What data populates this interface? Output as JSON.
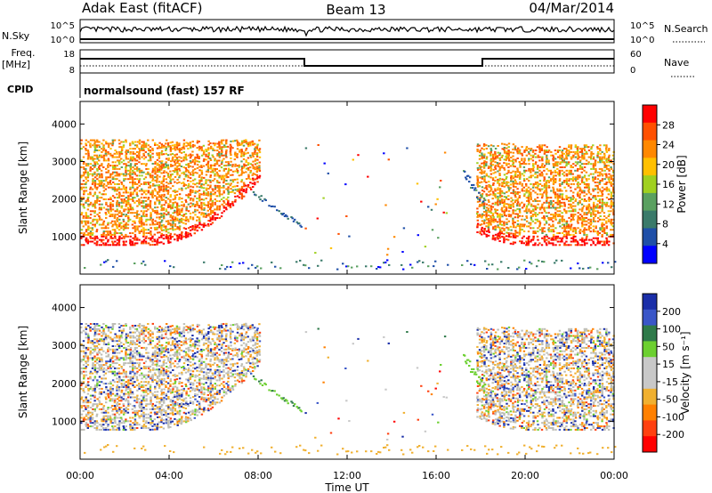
{
  "header": {
    "station": "Adak East (fitACF)",
    "beam": "Beam 13",
    "date": "04/Mar/2014"
  },
  "panels": {
    "nsky_label": "N.Sky",
    "nsky_ticks": [
      "10^5",
      "10^0"
    ],
    "nsearch_label": "N.Search",
    "nsearch_ticks": [
      "10^5",
      "10^0"
    ],
    "freq_label_1": "Freq.",
    "freq_label_2": "[MHz]",
    "freq_ticks": [
      "18",
      "8"
    ],
    "nave_label": "Nave",
    "nave_ticks": [
      "60",
      "0"
    ],
    "cpid_label": "CPID",
    "cpid_text": "normalsound (fast) 157 RF"
  },
  "colors": {
    "power_scale": [
      "#0000ff",
      "#1f4fa8",
      "#3a7a6a",
      "#5aa060",
      "#a0d020",
      "#ffc000",
      "#ff8800",
      "#ff5000",
      "#ff0000"
    ],
    "velocity_scale": [
      "#1a2ea8",
      "#3a56c8",
      "#2f7a4a",
      "#6cd030",
      "#c8c8c8",
      "#c8c8c8",
      "#f0b030",
      "#ff8000",
      "#ff4010",
      "#ff0000"
    ],
    "ground_scatter": "#bebeb6"
  },
  "chart_data": [
    {
      "type": "heatmap",
      "name": "power",
      "ylabel": "Slant Range [km]",
      "yticks": [
        "1000",
        "2000",
        "3000",
        "4000"
      ],
      "ylim": [
        0,
        4600
      ],
      "colorbar_label": "Power [dB]",
      "colorbar_ticks": [
        "28",
        "24",
        "20",
        "16",
        "12",
        "8",
        "4"
      ],
      "colorbar_range": [
        0,
        32
      ]
    },
    {
      "type": "heatmap",
      "name": "velocity",
      "ylabel": "Slant Range [km]",
      "yticks": [
        "1000",
        "2000",
        "3000",
        "4000"
      ],
      "ylim": [
        0,
        4600
      ],
      "colorbar_label": "Velocity [m s⁻¹]",
      "colorbar_ticks": [
        "200",
        "100",
        "50",
        "15",
        "-15",
        "-50",
        "-100",
        "-200"
      ]
    }
  ],
  "xaxis": {
    "label": "Time UT",
    "ticks": [
      "00:00",
      "04:00",
      "08:00",
      "12:00",
      "16:00",
      "20:00",
      "00:00"
    ]
  }
}
